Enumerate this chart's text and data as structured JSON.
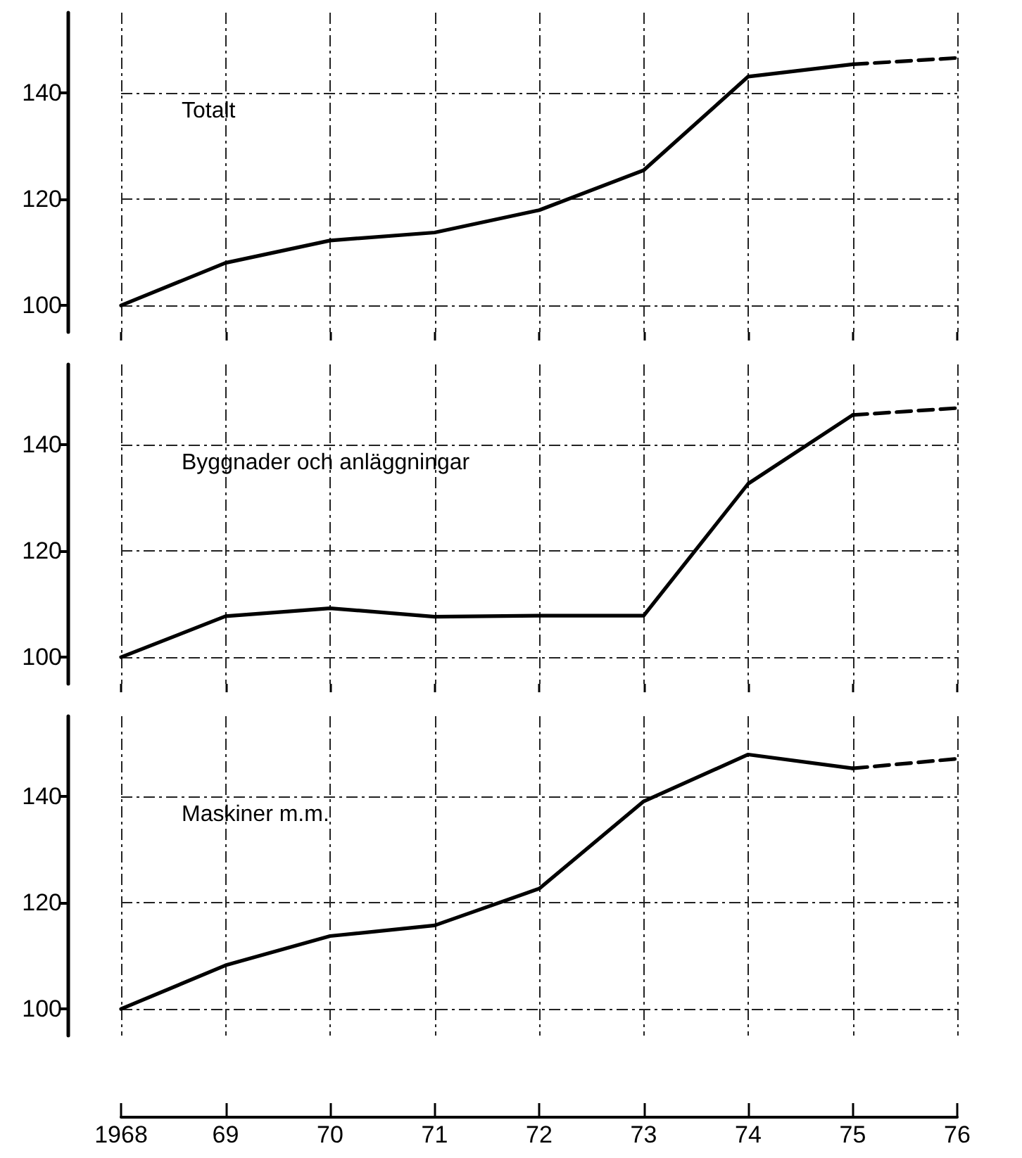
{
  "chart_data": [
    {
      "type": "line",
      "title": "Totalt",
      "categories": [
        "1968",
        "69",
        "70",
        "71",
        "72",
        "73",
        "74",
        "75",
        "76"
      ],
      "ylim": [
        95,
        155
      ],
      "yticks": [
        100,
        120,
        140
      ],
      "grid": true,
      "tick_labels": "y",
      "series": [
        {
          "color": "#000000",
          "line_style": "solid",
          "values": [
            100,
            108,
            112.2,
            113.7,
            117.9,
            125.4,
            143,
            145.3,
            null
          ]
        },
        {
          "color": "#000000",
          "line_style": "dashed",
          "values": [
            null,
            null,
            null,
            null,
            null,
            null,
            null,
            145.3,
            146.5
          ]
        }
      ]
    },
    {
      "type": "line",
      "title": "Byggnader och anläggningar",
      "categories": [
        "1968",
        "69",
        "70",
        "71",
        "72",
        "73",
        "74",
        "75",
        "76"
      ],
      "ylim": [
        95,
        155
      ],
      "yticks": [
        100,
        120,
        140
      ],
      "grid": true,
      "tick_labels": "y",
      "series": [
        {
          "color": "#000000",
          "line_style": "solid",
          "values": [
            100,
            107.7,
            109.2,
            107.6,
            107.8,
            107.8,
            132.6,
            145.5,
            null
          ]
        },
        {
          "color": "#000000",
          "line_style": "dashed",
          "values": [
            null,
            null,
            null,
            null,
            null,
            null,
            null,
            145.5,
            146.8
          ]
        }
      ]
    },
    {
      "type": "line",
      "title": "Maskiner m.m.",
      "categories": [
        "1968",
        "69",
        "70",
        "71",
        "72",
        "73",
        "74",
        "75",
        "76"
      ],
      "ylim": [
        95,
        155
      ],
      "yticks": [
        100,
        120,
        140
      ],
      "grid": true,
      "series": [
        {
          "color": "#000000",
          "line_style": "solid",
          "values": [
            100,
            108.2,
            113.7,
            115.7,
            122.6,
            139,
            147.8,
            145.2,
            null
          ]
        },
        {
          "color": "#000000",
          "line_style": "dashed",
          "values": [
            null,
            null,
            null,
            null,
            null,
            null,
            null,
            145.2,
            147
          ]
        }
      ]
    }
  ]
}
